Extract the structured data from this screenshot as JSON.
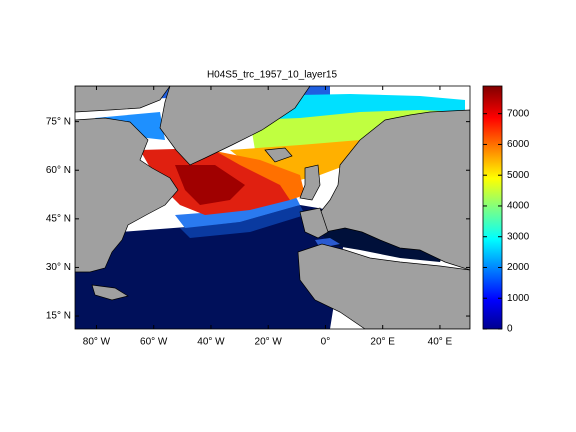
{
  "chart_data": {
    "type": "map",
    "title": "H04S5_trc_1957_10_layer15",
    "xlim": [
      -87.5,
      50.5
    ],
    "ylim": [
      11,
      86
    ],
    "xticks": [
      {
        "value": -80,
        "label": "80° W"
      },
      {
        "value": -60,
        "label": "60° W"
      },
      {
        "value": -40,
        "label": "40° W"
      },
      {
        "value": -20,
        "label": "20° W"
      },
      {
        "value": 0,
        "label": "0°"
      },
      {
        "value": 20,
        "label": "20° E"
      },
      {
        "value": 40,
        "label": "40° E"
      }
    ],
    "yticks": [
      {
        "value": 15,
        "label": "15° N"
      },
      {
        "value": 30,
        "label": "30° N"
      },
      {
        "value": 45,
        "label": "45° N"
      },
      {
        "value": 60,
        "label": "60° N"
      },
      {
        "value": 75,
        "label": "75° N"
      }
    ],
    "colorbar": {
      "colormap": "jet",
      "clim": [
        0,
        7900
      ],
      "ticks": [
        0,
        1000,
        2000,
        3000,
        4000,
        5000,
        6000,
        7000
      ]
    }
  }
}
